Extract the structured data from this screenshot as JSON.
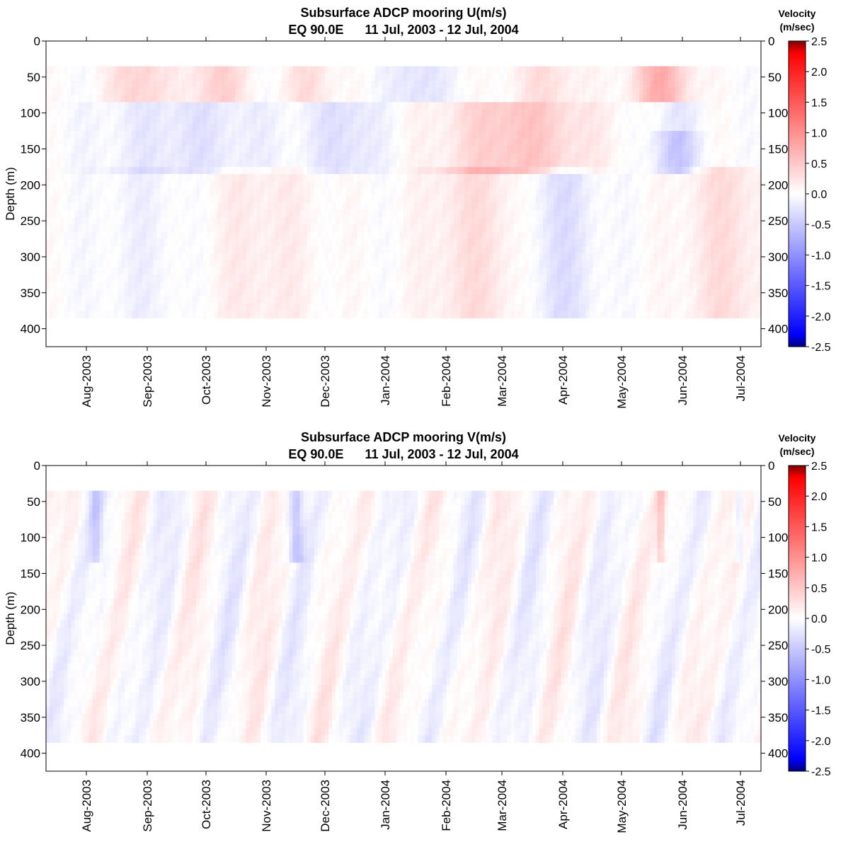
{
  "chart_data": [
    {
      "type": "heatmap",
      "title": "Subsurface ADCP mooring U(m/s)",
      "subtitle": "EQ 90.0E      11 Jul, 2003 - 12 Jul, 2004",
      "xlabel": "",
      "ylabel": "Depth (m)",
      "x_tick_labels": [
        "Aug-2003",
        "Sep-2003",
        "Oct-2003",
        "Nov-2003",
        "Dec-2003",
        "Jan-2004",
        "Feb-2004",
        "Mar-2004",
        "Apr-2004",
        "May-2004",
        "Jun-2004",
        "Jul-2004"
      ],
      "y_ticks": [
        "0",
        "50",
        "100",
        "150",
        "200",
        "250",
        "300",
        "350",
        "400"
      ],
      "ylim": [
        425,
        0
      ],
      "y_reversed": true,
      "data_depth_range": [
        35,
        385
      ],
      "colorbar": {
        "title_line1": "Velocity",
        "title_line2": "(m/sec)",
        "ticks": [
          "2.5",
          "2.0",
          "1.5",
          "1.0",
          "0.5",
          "0.0",
          "-0.5",
          "-1.0",
          "-1.5",
          "-2.0",
          "-2.5"
        ],
        "range": [
          -2.5,
          2.5
        ],
        "colors": [
          "#00007f",
          "#0000ff",
          "#ffffff",
          "#ff0000",
          "#7f0000"
        ]
      }
    },
    {
      "type": "heatmap",
      "title": "Subsurface ADCP mooring V(m/s)",
      "subtitle": "EQ 90.0E      11 Jul, 2003 - 12 Jul, 2004",
      "xlabel": "",
      "ylabel": "Depth (m)",
      "x_tick_labels": [
        "Aug-2003",
        "Sep-2003",
        "Oct-2003",
        "Nov-2003",
        "Dec-2003",
        "Jan-2004",
        "Feb-2004",
        "Mar-2004",
        "Apr-2004",
        "May-2004",
        "Jun-2004",
        "Jul-2004"
      ],
      "y_ticks": [
        "0",
        "50",
        "100",
        "150",
        "200",
        "250",
        "300",
        "350",
        "400"
      ],
      "ylim": [
        425,
        0
      ],
      "y_reversed": true,
      "data_depth_range": [
        35,
        385
      ],
      "colorbar": {
        "title_line1": "Velocity",
        "title_line2": "(m/sec)",
        "ticks": [
          "2.5",
          "2.0",
          "1.5",
          "1.0",
          "0.5",
          "0.0",
          "-0.5",
          "-1.0",
          "-1.5",
          "-2.0",
          "-2.5"
        ],
        "range": [
          -2.5,
          2.5
        ],
        "colors": [
          "#00007f",
          "#0000ff",
          "#ffffff",
          "#ff0000",
          "#7f0000"
        ]
      }
    }
  ]
}
